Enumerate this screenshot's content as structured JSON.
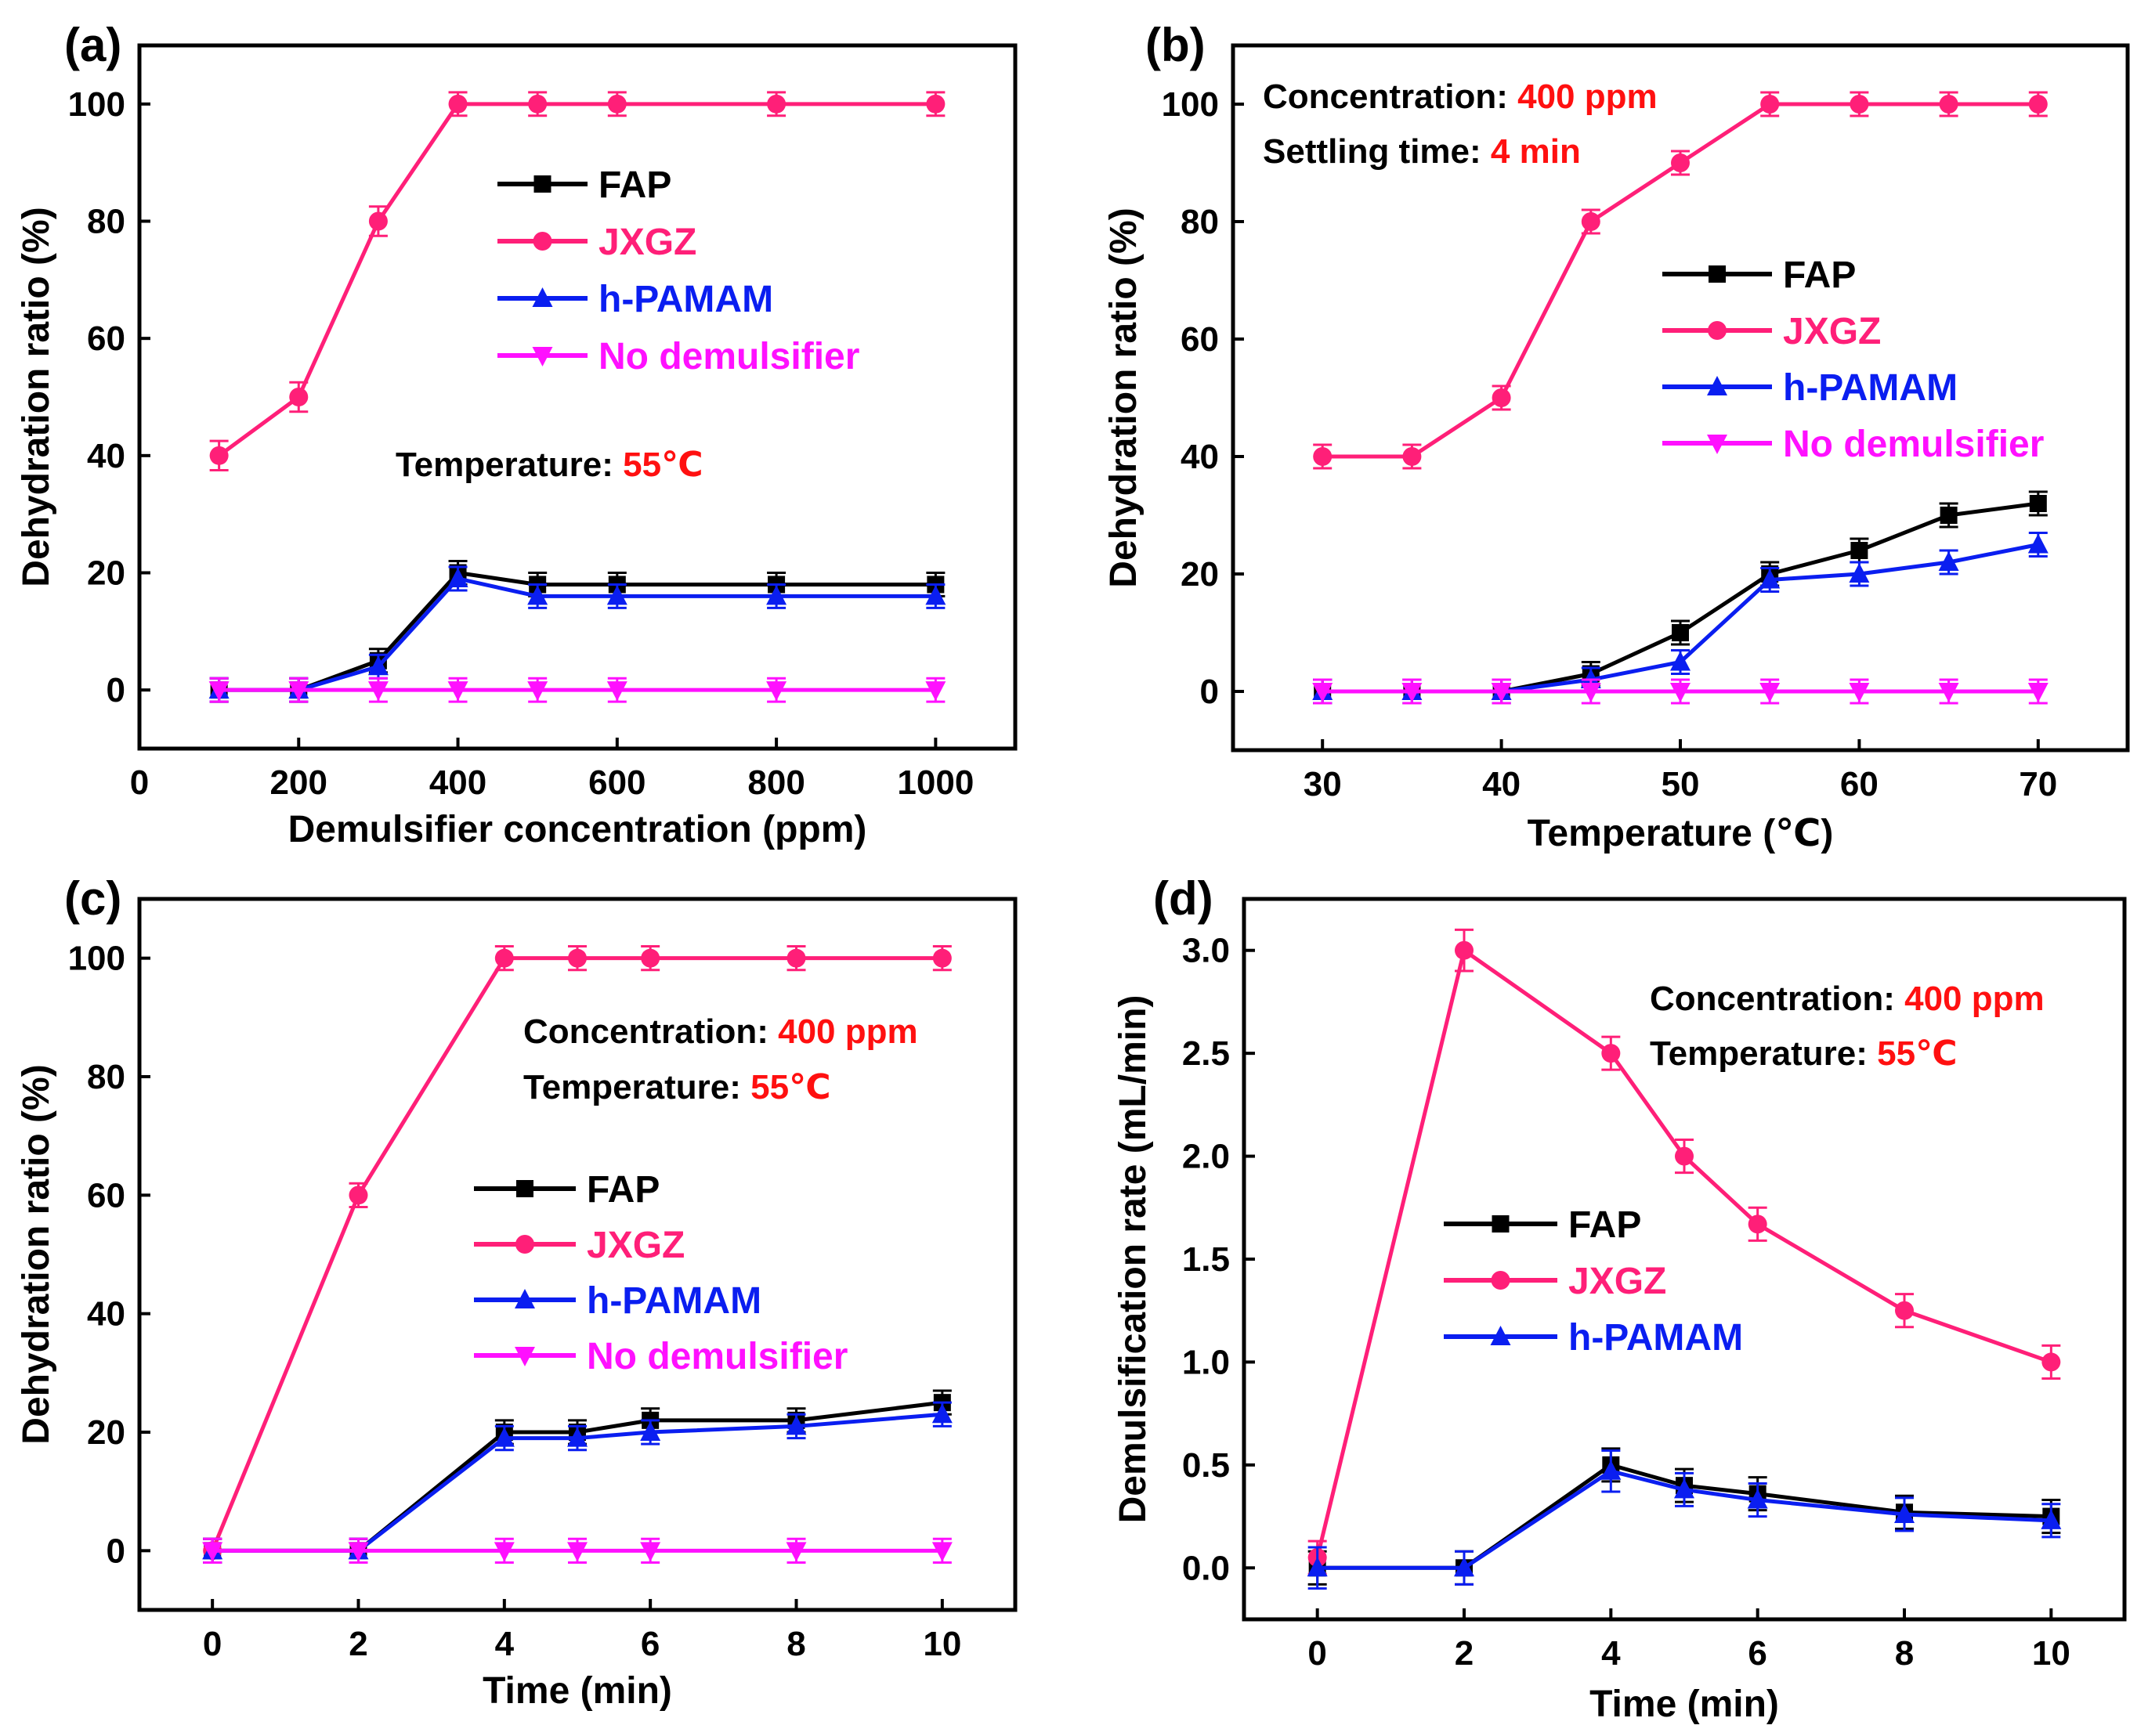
{
  "chart_data": [
    {
      "type": "line",
      "panel_label": "(a)",
      "xlabel": "Demulsifier concentration (ppm)",
      "ylabel": "Dehydration ratio (%)",
      "xlim": [
        0,
        1100
      ],
      "ylim": [
        -10,
        110
      ],
      "xticks": [
        "0",
        "200",
        "400",
        "600",
        "800",
        "1000"
      ],
      "xtick_values": [
        0,
        200,
        400,
        600,
        800,
        1000
      ],
      "yticks": [
        "0",
        "20",
        "40",
        "60",
        "80",
        "100"
      ],
      "ytick_values": [
        0,
        20,
        40,
        60,
        80,
        100
      ],
      "series": [
        {
          "name": "FAP",
          "color": "#000000",
          "marker": "square",
          "x": [
            100,
            200,
            300,
            400,
            500,
            600,
            800,
            1000
          ],
          "values": [
            0,
            0,
            5,
            20,
            18,
            18,
            18,
            18
          ],
          "err": [
            2,
            2,
            2,
            2,
            2,
            2,
            2,
            2
          ]
        },
        {
          "name": "JXGZ",
          "color": "#ff1f78",
          "marker": "circle",
          "x": [
            100,
            200,
            300,
            400,
            500,
            600,
            800,
            1000
          ],
          "values": [
            40,
            50,
            80,
            100,
            100,
            100,
            100,
            100
          ],
          "err": [
            2.5,
            2.5,
            2.5,
            2,
            2,
            2,
            2,
            2
          ]
        },
        {
          "name": "h-PAMAM",
          "color": "#0a1ef0",
          "marker": "triangle-up",
          "x": [
            100,
            200,
            300,
            400,
            500,
            600,
            800,
            1000
          ],
          "values": [
            0,
            0,
            4,
            19,
            16,
            16,
            16,
            16
          ],
          "err": [
            2,
            2,
            2,
            2,
            2,
            2,
            2,
            2
          ]
        },
        {
          "name": "No demulsifier",
          "color": "#ff10ff",
          "marker": "triangle-down",
          "x": [
            100,
            200,
            300,
            400,
            500,
            600,
            800,
            1000
          ],
          "values": [
            0,
            0,
            0,
            0,
            0,
            0,
            0,
            0
          ],
          "err": [
            2,
            2,
            2,
            2,
            2,
            2,
            2,
            2
          ]
        }
      ],
      "legend_position": "upper-center",
      "annotations": [
        {
          "label": "Temperature: ",
          "value": "55℃"
        }
      ]
    },
    {
      "type": "line",
      "panel_label": "(b)",
      "xlabel": "Temperature (℃)",
      "ylabel": "Dehydration ratio (%)",
      "xlim": [
        25,
        75
      ],
      "ylim": [
        -10,
        110
      ],
      "xticks": [
        "30",
        "40",
        "50",
        "60",
        "70"
      ],
      "xtick_values": [
        30,
        40,
        50,
        60,
        70
      ],
      "yticks": [
        "0",
        "20",
        "40",
        "60",
        "80",
        "100"
      ],
      "ytick_values": [
        0,
        20,
        40,
        60,
        80,
        100
      ],
      "series": [
        {
          "name": "FAP",
          "color": "#000000",
          "marker": "square",
          "x": [
            30,
            35,
            40,
            45,
            50,
            55,
            60,
            65,
            70
          ],
          "values": [
            0,
            0,
            0,
            3,
            10,
            20,
            24,
            30,
            32
          ],
          "err": [
            2,
            2,
            2,
            2,
            2,
            2,
            2,
            2,
            2
          ]
        },
        {
          "name": "JXGZ",
          "color": "#ff1f78",
          "marker": "circle",
          "x": [
            30,
            35,
            40,
            45,
            50,
            55,
            60,
            65,
            70
          ],
          "values": [
            40,
            40,
            50,
            80,
            90,
            100,
            100,
            100,
            100
          ],
          "err": [
            2,
            2,
            2,
            2,
            2,
            2,
            2,
            2,
            2
          ]
        },
        {
          "name": "h-PAMAM",
          "color": "#0a1ef0",
          "marker": "triangle-up",
          "x": [
            30,
            35,
            40,
            45,
            50,
            55,
            60,
            65,
            70
          ],
          "values": [
            0,
            0,
            0,
            2,
            5,
            19,
            20,
            22,
            25
          ],
          "err": [
            2,
            2,
            2,
            2,
            2,
            2,
            2,
            2,
            2
          ]
        },
        {
          "name": "No demulsifier",
          "color": "#ff10ff",
          "marker": "triangle-down",
          "x": [
            30,
            35,
            40,
            45,
            50,
            55,
            60,
            65,
            70
          ],
          "values": [
            0,
            0,
            0,
            0,
            0,
            0,
            0,
            0,
            0
          ],
          "err": [
            2,
            2,
            2,
            2,
            2,
            2,
            2,
            2,
            2
          ]
        }
      ],
      "legend_position": "center-right",
      "annotations": [
        {
          "label": "Concentration: ",
          "value": "400 ppm"
        },
        {
          "label": "Settling time: ",
          "value": "4 min"
        }
      ]
    },
    {
      "type": "line",
      "panel_label": "(c)",
      "xlabel": "Time (min)",
      "ylabel": "Dehydration ratio (%)",
      "xlim": [
        -1,
        11
      ],
      "ylim": [
        -10,
        110
      ],
      "xticks": [
        "0",
        "2",
        "4",
        "6",
        "8",
        "10"
      ],
      "xtick_values": [
        0,
        2,
        4,
        6,
        8,
        10
      ],
      "yticks": [
        "0",
        "20",
        "40",
        "60",
        "80",
        "100"
      ],
      "ytick_values": [
        0,
        20,
        40,
        60,
        80,
        100
      ],
      "series": [
        {
          "name": "FAP",
          "color": "#000000",
          "marker": "square",
          "x": [
            0,
            2,
            4,
            5,
            6,
            8,
            10
          ],
          "values": [
            0,
            0,
            20,
            20,
            22,
            22,
            25
          ],
          "err": [
            2,
            2,
            2,
            2,
            2,
            2,
            2
          ]
        },
        {
          "name": "JXGZ",
          "color": "#ff1f78",
          "marker": "circle",
          "x": [
            0,
            2,
            4,
            5,
            6,
            8,
            10
          ],
          "values": [
            0,
            60,
            100,
            100,
            100,
            100,
            100
          ],
          "err": [
            2,
            2,
            2,
            2,
            2,
            2,
            2
          ]
        },
        {
          "name": "h-PAMAM",
          "color": "#0a1ef0",
          "marker": "triangle-up",
          "x": [
            0,
            2,
            4,
            5,
            6,
            8,
            10
          ],
          "values": [
            0,
            0,
            19,
            19,
            20,
            21,
            23
          ],
          "err": [
            2,
            2,
            2,
            2,
            2,
            2,
            2
          ]
        },
        {
          "name": "No demulsifier",
          "color": "#ff10ff",
          "marker": "triangle-down",
          "x": [
            0,
            2,
            4,
            5,
            6,
            8,
            10
          ],
          "values": [
            0,
            0,
            0,
            0,
            0,
            0,
            0
          ],
          "err": [
            2,
            2,
            2,
            2,
            2,
            2,
            2
          ]
        }
      ],
      "legend_position": "center",
      "annotations": [
        {
          "label": "Concentration: ",
          "value": "400 ppm"
        },
        {
          "label": "Temperature: ",
          "value": "55℃"
        }
      ]
    },
    {
      "type": "line",
      "panel_label": "(d)",
      "xlabel": "Time (min)",
      "ylabel": "Demulsification rate (mL/min)",
      "xlim": [
        -1,
        11
      ],
      "ylim": [
        -0.25,
        3.25
      ],
      "xticks": [
        "0",
        "2",
        "4",
        "6",
        "8",
        "10"
      ],
      "xtick_values": [
        0,
        2,
        4,
        6,
        8,
        10
      ],
      "yticks": [
        "0.0",
        "0.5",
        "1.0",
        "1.5",
        "2.0",
        "2.5",
        "3.0"
      ],
      "ytick_values": [
        0,
        0.5,
        1.0,
        1.5,
        2.0,
        2.5,
        3.0
      ],
      "series": [
        {
          "name": "FAP",
          "color": "#000000",
          "marker": "square",
          "x": [
            0,
            2,
            4,
            5,
            6,
            8,
            10
          ],
          "values": [
            0,
            0,
            0.5,
            0.4,
            0.36,
            0.27,
            0.25
          ],
          "err": [
            0.08,
            0.08,
            0.08,
            0.08,
            0.08,
            0.08,
            0.08
          ]
        },
        {
          "name": "JXGZ",
          "color": "#ff1f78",
          "marker": "circle",
          "x": [
            0,
            2,
            4,
            5,
            6,
            8,
            10
          ],
          "values": [
            0.05,
            3.0,
            2.5,
            2.0,
            1.67,
            1.25,
            1.0
          ],
          "err": [
            0.08,
            0.1,
            0.08,
            0.08,
            0.08,
            0.08,
            0.08
          ]
        },
        {
          "name": "h-PAMAM",
          "color": "#0a1ef0",
          "marker": "triangle-up",
          "x": [
            0,
            2,
            4,
            5,
            6,
            8,
            10
          ],
          "values": [
            0,
            0,
            0.47,
            0.38,
            0.33,
            0.26,
            0.23
          ],
          "err": [
            0.1,
            0.08,
            0.1,
            0.08,
            0.08,
            0.08,
            0.08
          ]
        }
      ],
      "legend_position": "center-left",
      "annotations": [
        {
          "label": "Concentration: ",
          "value": "400 ppm"
        },
        {
          "label": "Temperature: ",
          "value": "55℃"
        }
      ]
    }
  ]
}
